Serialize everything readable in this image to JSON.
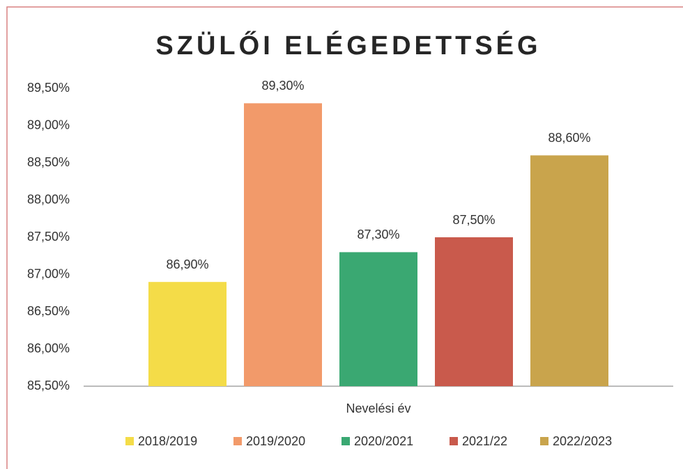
{
  "chart_data": {
    "type": "bar",
    "title": "SZÜLŐI ELÉGEDETTSÉG",
    "x_label": "Nevelési év",
    "categories": [
      null
    ],
    "series": [
      {
        "name": "2018/2019",
        "color": "#f4dc48",
        "values": [
          86.9
        ],
        "value_labels": [
          "86,90%"
        ]
      },
      {
        "name": "2019/2020",
        "color": "#f29a6a",
        "values": [
          89.3
        ],
        "value_labels": [
          "89,30%"
        ]
      },
      {
        "name": "2020/2021",
        "color": "#3aa872",
        "values": [
          87.3
        ],
        "value_labels": [
          "87,30%"
        ]
      },
      {
        "name": "2021/22",
        "color": "#c95a4c",
        "values": [
          87.5
        ],
        "value_labels": [
          "87,50%"
        ]
      },
      {
        "name": "2022/2023",
        "color": "#c9a44c",
        "values": [
          88.6
        ],
        "value_labels": [
          "88,60%"
        ]
      }
    ],
    "ylim": [
      85.5,
      89.5
    ],
    "yticks": [
      {
        "value": 85.5,
        "label": "85,50%"
      },
      {
        "value": 86,
        "label": "86,00%"
      },
      {
        "value": 86.5,
        "label": "86,50%"
      },
      {
        "value": 87,
        "label": "87,00%"
      },
      {
        "value": 87.5,
        "label": "87,50%"
      },
      {
        "value": 88,
        "label": "88,00%"
      },
      {
        "value": 88.5,
        "label": "88,50%"
      },
      {
        "value": 89,
        "label": "89,00%"
      },
      {
        "value": 89.5,
        "label": "89,50%"
      }
    ],
    "legend": "bottom"
  }
}
